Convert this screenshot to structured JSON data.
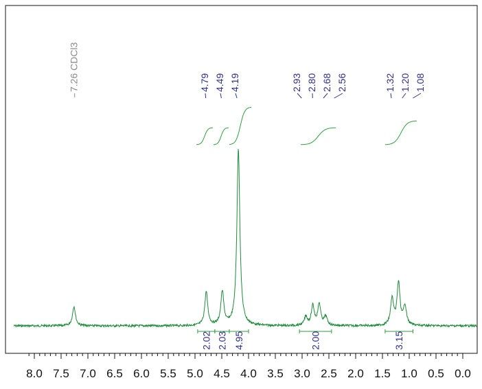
{
  "chart_data": {
    "type": "line",
    "x_axis": {
      "ticks": [
        "8.0",
        "7.5",
        "7.0",
        "6.5",
        "6.0",
        "5.5",
        "5.0",
        "4.5",
        "4.0",
        "3.5",
        "3.0",
        "2.5",
        "2.0",
        "1.5",
        "1.0",
        "0.5",
        "0.0"
      ],
      "tick_values": [
        8.0,
        7.5,
        7.0,
        6.5,
        6.0,
        5.5,
        5.0,
        4.5,
        4.0,
        3.5,
        3.0,
        2.5,
        2.0,
        1.5,
        1.0,
        0.5,
        0.0
      ],
      "range": [
        8.2,
        -0.2
      ],
      "reversed": true
    },
    "y_range": [
      0,
      1.0
    ],
    "solvent_peak": {
      "shift": 7.26,
      "label": "7.26 CDCl3",
      "intensity": 0.11
    },
    "peaks": [
      {
        "shift": 4.79,
        "label": "4.79",
        "intensity": 0.19
      },
      {
        "shift": 4.49,
        "label": "4.49",
        "intensity": 0.19
      },
      {
        "shift": 4.19,
        "label": "4.19",
        "intensity": 1.0
      },
      {
        "shift": 2.93,
        "label": "2.93",
        "intensity": 0.05
      },
      {
        "shift": 2.8,
        "label": "2.80",
        "intensity": 0.11
      },
      {
        "shift": 2.68,
        "label": "2.68",
        "intensity": 0.12
      },
      {
        "shift": 2.56,
        "label": "2.56",
        "intensity": 0.05
      },
      {
        "shift": 1.32,
        "label": "1.32",
        "intensity": 0.15
      },
      {
        "shift": 1.2,
        "label": "1.20",
        "intensity": 0.24
      },
      {
        "shift": 1.08,
        "label": "1.08",
        "intensity": 0.11
      }
    ],
    "integrals": [
      {
        "range": [
          4.95,
          4.63
        ],
        "value": "2.02"
      },
      {
        "range": [
          4.63,
          4.36
        ],
        "value": "2.03"
      },
      {
        "range": [
          4.36,
          4.0
        ],
        "value": "4.95"
      },
      {
        "range": [
          3.05,
          2.45
        ],
        "value": "2.00"
      },
      {
        "range": [
          1.45,
          0.93
        ],
        "value": "3.15"
      }
    ],
    "colors": {
      "spectrum": "#1e8a3a",
      "integral_curve": "#2f9e3f",
      "peak_label": "#2e2e8f",
      "solvent_label": "#8a8a8a",
      "axis": "#111111"
    }
  }
}
